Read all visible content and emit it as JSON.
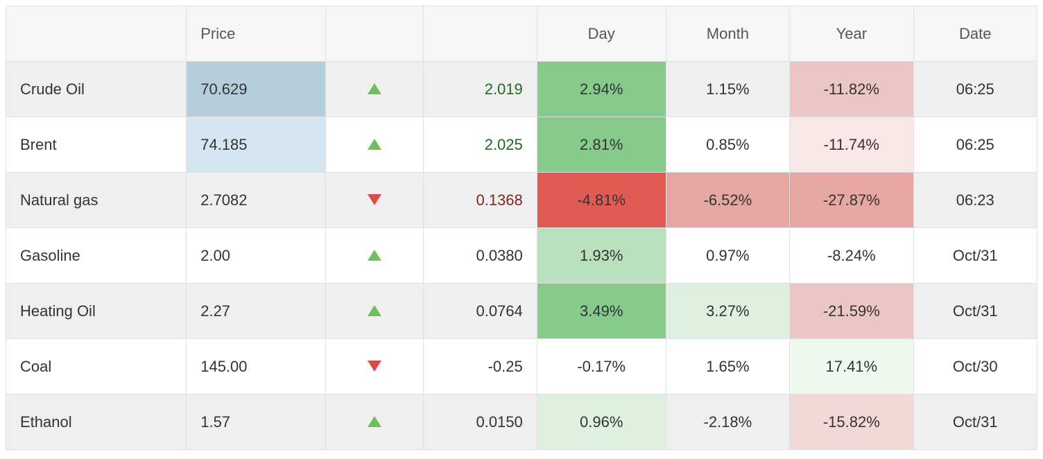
{
  "table": {
    "columns": {
      "name": {
        "label": "",
        "width_pct": 17.5
      },
      "price": {
        "label": "Price",
        "width_pct": 13.5
      },
      "dir": {
        "label": "",
        "width_pct": 9.5
      },
      "change": {
        "label": "",
        "width_pct": 11.0
      },
      "day": {
        "label": "Day",
        "width_pct": 12.5
      },
      "month": {
        "label": "Month",
        "width_pct": 12.0
      },
      "year": {
        "label": "Year",
        "width_pct": 12.0
      },
      "date": {
        "label": "Date",
        "width_pct": 12.0
      }
    },
    "colors": {
      "border": "#e0e0e0",
      "header_bg": "#f7f7f7",
      "row_even_bg": "#efefef",
      "row_odd_bg": "#ffffff",
      "text": "#333333",
      "up_triangle": "#6fbf5e",
      "down_triangle": "#d94b44",
      "change_up_text": "#1d6b1d",
      "change_down_text": "#8a1f1f",
      "price_highlight_even": "#b6cddc",
      "price_highlight_odd": "#d4e6f1",
      "heat_green_strong": "#86ca8c",
      "heat_green_mid": "#b9e1bd",
      "heat_green_light": "#def0df",
      "heat_green_faint": "#eef8ef",
      "heat_red_strong": "#de5a52",
      "heat_red_mid": "#e6a6a2",
      "heat_red_light": "#eac6c4",
      "heat_red_vlight": "#f2d9d8",
      "heat_red_faint": "#f7e7e6"
    },
    "rows": [
      {
        "name": "Crude Oil",
        "price": "70.629",
        "price_highlight": true,
        "direction": "up",
        "change": "2.019",
        "change_color": "up",
        "day": {
          "text": "2.94%",
          "bg": "#86ca8c"
        },
        "month": {
          "text": "1.15%",
          "bg": null
        },
        "year": {
          "text": "-11.82%",
          "bg": "#eac6c4"
        },
        "date": "06:25"
      },
      {
        "name": "Brent",
        "price": "74.185",
        "price_highlight": true,
        "direction": "up",
        "change": "2.025",
        "change_color": "up",
        "day": {
          "text": "2.81%",
          "bg": "#86ca8c"
        },
        "month": {
          "text": "0.85%",
          "bg": null
        },
        "year": {
          "text": "-11.74%",
          "bg": "#f7e7e6"
        },
        "date": "06:25"
      },
      {
        "name": "Natural gas",
        "price": "2.7082",
        "price_highlight": false,
        "direction": "down",
        "change": "0.1368",
        "change_color": "down",
        "day": {
          "text": "-4.81%",
          "bg": "#de5a52"
        },
        "month": {
          "text": "-6.52%",
          "bg": "#e6a6a2"
        },
        "year": {
          "text": "-27.87%",
          "bg": "#e6a6a2"
        },
        "date": "06:23"
      },
      {
        "name": "Gasoline",
        "price": "2.00",
        "price_highlight": false,
        "direction": "up",
        "change": "0.0380",
        "change_color": "flat",
        "day": {
          "text": "1.93%",
          "bg": "#b9e1bd"
        },
        "month": {
          "text": "0.97%",
          "bg": null
        },
        "year": {
          "text": "-8.24%",
          "bg": null
        },
        "date": "Oct/31"
      },
      {
        "name": "Heating Oil",
        "price": "2.27",
        "price_highlight": false,
        "direction": "up",
        "change": "0.0764",
        "change_color": "flat",
        "day": {
          "text": "3.49%",
          "bg": "#86ca8c"
        },
        "month": {
          "text": "3.27%",
          "bg": "#def0df"
        },
        "year": {
          "text": "-21.59%",
          "bg": "#eac6c4"
        },
        "date": "Oct/31"
      },
      {
        "name": "Coal",
        "price": "145.00",
        "price_highlight": false,
        "direction": "down",
        "change": "-0.25",
        "change_color": "flat",
        "day": {
          "text": "-0.17%",
          "bg": null
        },
        "month": {
          "text": "1.65%",
          "bg": null
        },
        "year": {
          "text": "17.41%",
          "bg": "#eef8ef"
        },
        "date": "Oct/30"
      },
      {
        "name": "Ethanol",
        "price": "1.57",
        "price_highlight": false,
        "direction": "up",
        "change": "0.0150",
        "change_color": "flat",
        "day": {
          "text": "0.96%",
          "bg": "#def0df"
        },
        "month": {
          "text": "-2.18%",
          "bg": null
        },
        "year": {
          "text": "-15.82%",
          "bg": "#f2d9d8"
        },
        "date": "Oct/31"
      }
    ]
  }
}
